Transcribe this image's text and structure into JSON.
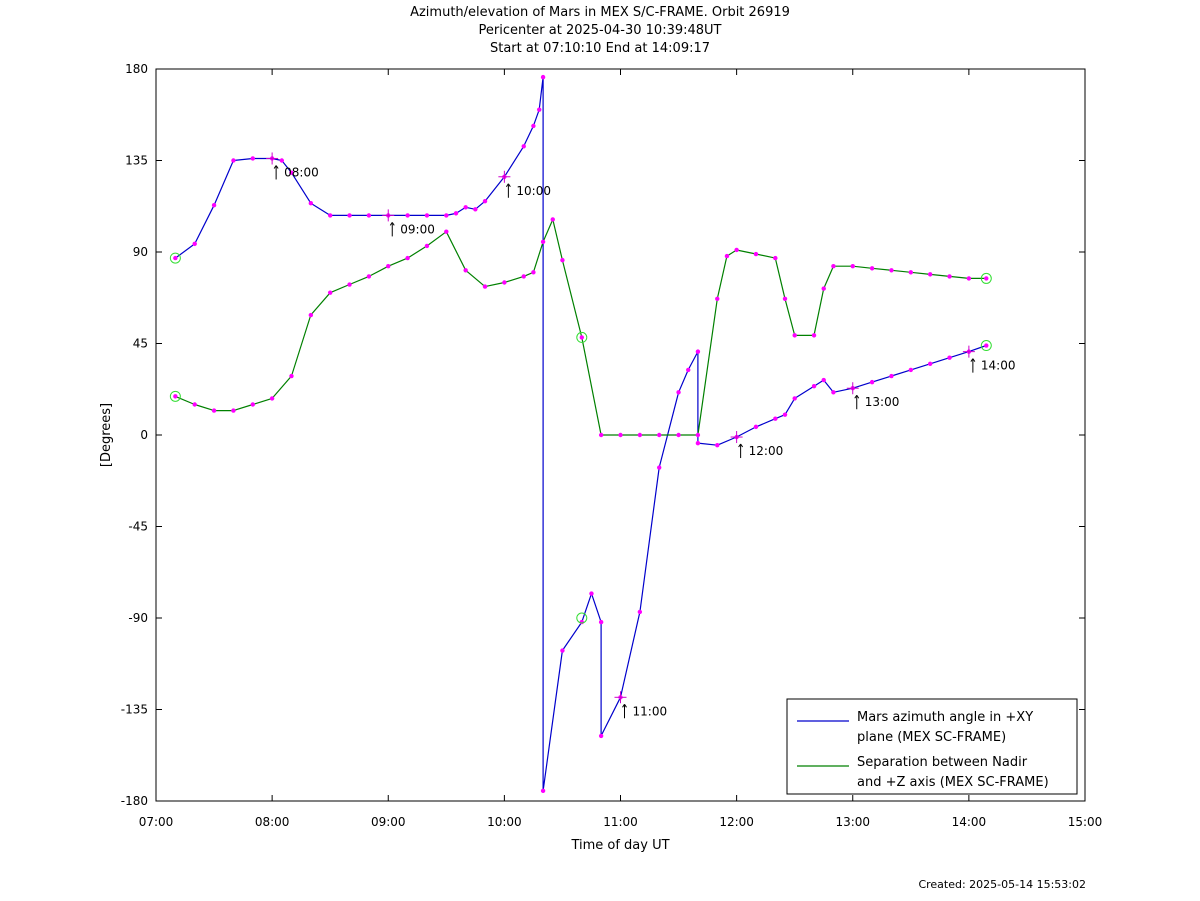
{
  "chart_data": {
    "type": "line",
    "title": "Azimuth/elevation of Mars in MEX S/C-FRAME.  Orbit 26919",
    "subtitle_1": "Pericenter at 2025-04-30 10:39:48UT",
    "subtitle_2": "Start at 07:10:10 End at 14:09:17",
    "xlabel": "Time of day UT",
    "ylabel": "[Degrees]",
    "footer": "Created: 2025-05-14 15:53:02",
    "xlim": [
      "07:00",
      "15:00"
    ],
    "ylim": [
      -180,
      180
    ],
    "xticks": [
      "07:00",
      "08:00",
      "09:00",
      "10:00",
      "11:00",
      "12:00",
      "13:00",
      "14:00",
      "15:00"
    ],
    "yticks": [
      "180",
      "135",
      "90",
      "45",
      "0",
      "-45",
      "-90",
      "-135",
      "-180"
    ],
    "grid": false,
    "legend_position": "bottom-right",
    "hour_annotations": [
      {
        "label": "08:00",
        "x": "08:00",
        "y": 136
      },
      {
        "label": "09:00",
        "x": "09:00",
        "y": 108
      },
      {
        "label": "10:00",
        "x": "10:00",
        "y": 127
      },
      {
        "label": "11:00",
        "x": "11:00",
        "y": -129
      },
      {
        "label": "12:00",
        "x": "12:00",
        "y": -1
      },
      {
        "label": "13:00",
        "x": "13:00",
        "y": 23
      },
      {
        "label": "14:00",
        "x": "14:00",
        "y": 41
      }
    ],
    "series": [
      {
        "name": "Mars azimuth angle in +XY plane (MEX SC-FRAME)",
        "legend_lines": [
          "Mars azimuth angle in +XY",
          "plane (MEX SC-FRAME)"
        ],
        "color": "#0000cc",
        "x": [
          "07:10",
          "07:20",
          "07:30",
          "07:40",
          "07:50",
          "08:00",
          "08:05",
          "08:10",
          "08:20",
          "08:30",
          "08:40",
          "08:50",
          "09:00",
          "09:10",
          "09:20",
          "09:30",
          "09:35",
          "09:40",
          "09:45",
          "09:50",
          "10:00",
          "10:10",
          "10:15",
          "10:18",
          "10:20",
          "10:20",
          "10:30",
          "10:40",
          "10:45",
          "10:50",
          "10:50",
          "11:00",
          "11:10",
          "11:20",
          "11:30",
          "11:35",
          "11:40",
          "11:40",
          "11:50",
          "12:00",
          "12:10",
          "12:20",
          "12:25",
          "12:30",
          "12:40",
          "12:45",
          "12:50",
          "13:00",
          "13:10",
          "13:20",
          "13:30",
          "13:40",
          "13:50",
          "14:00",
          "14:09"
        ],
        "y": [
          87,
          94,
          113,
          135,
          136,
          136,
          135,
          129,
          114,
          108,
          108,
          108,
          108,
          108,
          108,
          108,
          109,
          112,
          111,
          115,
          127,
          142,
          152,
          160,
          176,
          -175,
          -106,
          -92,
          -78,
          -92,
          -148,
          -129,
          -87,
          -16,
          21,
          32,
          41,
          -4,
          -5,
          -1,
          4,
          8,
          10,
          18,
          24,
          27,
          21,
          23,
          26,
          29,
          32,
          35,
          38,
          41,
          44
        ]
      },
      {
        "name": "Separation between Nadir and +Z axis (MEX SC-FRAME)",
        "legend_lines": [
          "Separation between Nadir",
          "and +Z axis (MEX SC-FRAME)"
        ],
        "color": "#008000",
        "x": [
          "07:10",
          "07:20",
          "07:30",
          "07:40",
          "07:50",
          "08:00",
          "08:10",
          "08:20",
          "08:30",
          "08:40",
          "08:50",
          "09:00",
          "09:10",
          "09:20",
          "09:30",
          "09:40",
          "09:50",
          "10:00",
          "10:10",
          "10:15",
          "10:20",
          "10:25",
          "10:30",
          "10:40",
          "10:50",
          "11:00",
          "11:10",
          "11:20",
          "11:30",
          "11:40",
          "11:50",
          "11:55",
          "12:00",
          "12:10",
          "12:20",
          "12:25",
          "12:30",
          "12:40",
          "12:45",
          "12:50",
          "13:00",
          "13:10",
          "13:20",
          "13:30",
          "13:40",
          "13:50",
          "14:00",
          "14:09"
        ],
        "y": [
          19,
          15,
          12,
          12,
          15,
          18,
          29,
          59,
          70,
          74,
          78,
          83,
          87,
          93,
          100,
          81,
          73,
          75,
          78,
          80,
          95,
          106,
          86,
          48,
          0,
          0,
          0,
          0,
          0,
          0,
          67,
          88,
          91,
          89,
          87,
          67,
          49,
          49,
          72,
          83,
          83,
          82,
          81,
          80,
          79,
          78,
          77,
          77
        ]
      }
    ],
    "markers": [
      {
        "x": "07:10",
        "y": 87,
        "shape": "circle"
      },
      {
        "x": "07:10",
        "y": 19,
        "shape": "circle"
      },
      {
        "x": "10:40",
        "y": 48,
        "shape": "circle"
      },
      {
        "x": "10:40",
        "y": -90,
        "shape": "circle"
      },
      {
        "x": "14:09",
        "y": 77,
        "shape": "circle"
      },
      {
        "x": "14:09",
        "y": 44,
        "shape": "circle"
      }
    ]
  }
}
